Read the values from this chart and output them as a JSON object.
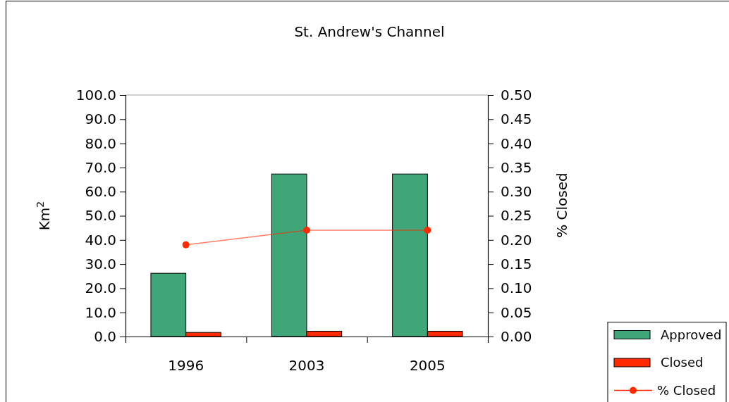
{
  "chart_data": {
    "type": "bar",
    "title": "St. Andrew's Channel",
    "ylabel": "Km$^{2}$",
    "y2label": "% Closed",
    "categories": [
      "1996",
      "2003",
      "2005"
    ],
    "series": [
      {
        "name": "Approved",
        "color": "#3fa67a",
        "values": [
          26.2,
          67.3,
          67.3
        ]
      },
      {
        "name": "Closed",
        "color": "#ff2a00",
        "values": [
          1.7,
          2.2,
          2.2
        ]
      },
      {
        "name": "% Closed",
        "type": "line",
        "axis": "y2",
        "color": "#ff2a00",
        "values": [
          0.19,
          0.22,
          0.22
        ]
      }
    ],
    "ylim": [
      0,
      100
    ],
    "yticks": [
      {
        "value": 0,
        "label": "0.0"
      },
      {
        "value": 10,
        "label": "10.0"
      },
      {
        "value": 20,
        "label": "20.0"
      },
      {
        "value": 30,
        "label": "30.0"
      },
      {
        "value": 40,
        "label": "40.0"
      },
      {
        "value": 50,
        "label": "50.0"
      },
      {
        "value": 60,
        "label": "60.0"
      },
      {
        "value": 70,
        "label": "70.0"
      },
      {
        "value": 80,
        "label": "80.0"
      },
      {
        "value": 90,
        "label": "90.0"
      },
      {
        "value": 100,
        "label": "100.0"
      }
    ],
    "y2lim": [
      0,
      0.5
    ],
    "y2ticks": [
      {
        "value": 0,
        "label": "0.00"
      },
      0.05,
      {
        "value": 0.1,
        "label": "0.10"
      },
      0.15,
      {
        "value": 0.2,
        "label": "0.20"
      },
      0.25,
      {
        "value": 0.3,
        "label": "0.30"
      },
      0.35,
      {
        "value": 0.4,
        "label": "0.40"
      },
      0.45,
      {
        "value": 0.5,
        "label": "0.50"
      }
    ],
    "legend": "bottom right",
    "marker": "circle"
  }
}
